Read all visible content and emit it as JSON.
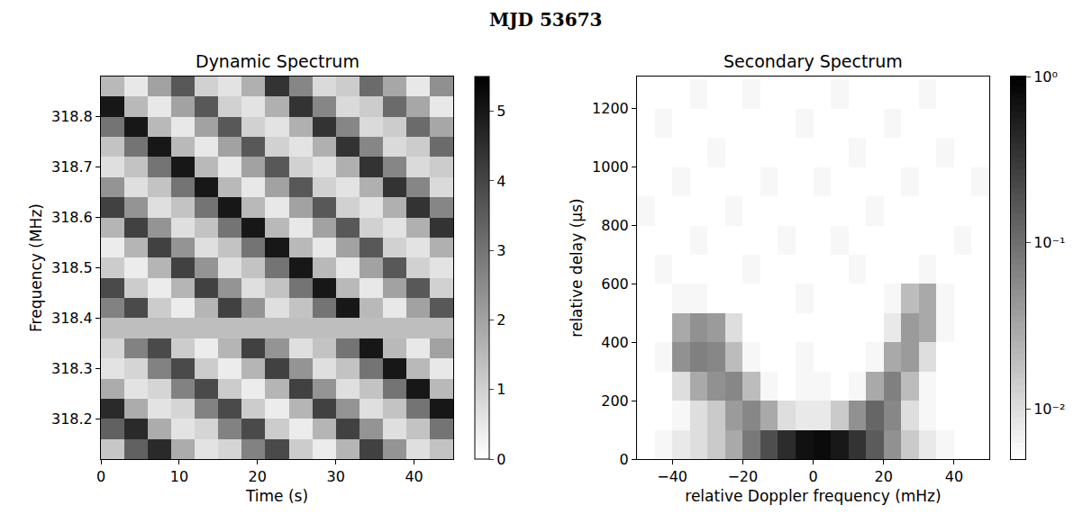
{
  "title": "MJD 53673",
  "chart_data": [
    {
      "type": "heatmap",
      "title": "Dynamic Spectrum",
      "xlabel": "Time (s)",
      "ylabel": "Frequency (MHz)",
      "xlim": [
        0,
        45
      ],
      "xticks": [
        0,
        10,
        20,
        30,
        40
      ],
      "ylim": [
        318.12,
        318.88
      ],
      "yticks": [
        318.2,
        318.3,
        318.4,
        318.5,
        318.6,
        318.7,
        318.8
      ],
      "x": [
        1.5,
        4.5,
        7.5,
        10.5,
        13.5,
        16.5,
        19.5,
        22.5,
        25.5,
        28.5,
        31.5,
        34.5,
        37.5,
        40.5,
        43.5
      ],
      "y": [
        318.14,
        318.18,
        318.22,
        318.26,
        318.3,
        318.34,
        318.38,
        318.42,
        318.46,
        318.5,
        318.54,
        318.58,
        318.62,
        318.66,
        318.7,
        318.74,
        318.78,
        318.82,
        318.86
      ],
      "z": [
        [
          1.2,
          3.4,
          4.6,
          1.8,
          0.6,
          0.9,
          2.7,
          3.9,
          1.1,
          0.4,
          1.6,
          4.1,
          2.3,
          0.7,
          1.3
        ],
        [
          3.4,
          4.6,
          1.8,
          0.6,
          0.9,
          2.7,
          3.9,
          1.1,
          0.4,
          1.6,
          4.1,
          2.3,
          0.7,
          1.3,
          3.0
        ],
        [
          4.6,
          1.8,
          0.6,
          0.9,
          2.7,
          3.9,
          1.1,
          0.4,
          1.6,
          4.1,
          2.3,
          0.7,
          1.3,
          3.0,
          5.0
        ],
        [
          1.8,
          0.6,
          0.9,
          2.7,
          3.9,
          1.1,
          0.4,
          1.6,
          4.1,
          2.3,
          0.7,
          1.3,
          3.0,
          5.0,
          1.5
        ],
        [
          0.6,
          0.9,
          2.7,
          3.9,
          1.1,
          0.4,
          1.6,
          4.1,
          2.3,
          0.7,
          1.3,
          3.0,
          5.0,
          1.5,
          0.5
        ],
        [
          0.9,
          2.7,
          3.9,
          1.1,
          0.4,
          1.6,
          4.1,
          2.3,
          0.7,
          1.3,
          3.0,
          5.0,
          1.5,
          0.5,
          2.0
        ],
        [
          1.4,
          1.4,
          1.4,
          1.4,
          1.4,
          1.4,
          1.4,
          1.4,
          1.4,
          1.4,
          1.4,
          1.4,
          1.4,
          1.4,
          1.4
        ],
        [
          2.7,
          3.9,
          1.1,
          0.4,
          1.6,
          4.1,
          2.3,
          0.7,
          1.3,
          3.0,
          5.0,
          1.5,
          0.5,
          2.0,
          3.6
        ],
        [
          3.9,
          1.1,
          0.4,
          1.6,
          4.1,
          2.3,
          0.7,
          1.3,
          3.0,
          5.0,
          1.5,
          0.5,
          2.0,
          3.6,
          1.0
        ],
        [
          1.1,
          0.4,
          1.6,
          4.1,
          2.3,
          0.7,
          1.3,
          3.0,
          5.0,
          1.5,
          0.5,
          2.0,
          3.6,
          1.0,
          0.6
        ],
        [
          0.4,
          1.6,
          4.1,
          2.3,
          0.7,
          1.3,
          3.0,
          5.0,
          1.5,
          0.5,
          2.0,
          3.6,
          1.0,
          0.6,
          1.7
        ],
        [
          1.6,
          4.1,
          2.3,
          0.7,
          1.3,
          3.0,
          5.0,
          1.5,
          0.5,
          2.0,
          3.6,
          1.0,
          0.6,
          1.7,
          4.4
        ],
        [
          4.1,
          2.3,
          0.7,
          1.3,
          3.0,
          5.0,
          1.5,
          0.5,
          2.0,
          3.6,
          1.0,
          0.6,
          1.7,
          4.4,
          2.6
        ],
        [
          2.3,
          0.7,
          1.3,
          3.0,
          5.0,
          1.5,
          0.5,
          2.0,
          3.6,
          1.0,
          0.6,
          1.7,
          4.4,
          2.6,
          0.8
        ],
        [
          0.7,
          1.3,
          3.0,
          5.0,
          1.5,
          0.5,
          2.0,
          3.6,
          1.0,
          0.6,
          1.7,
          4.4,
          2.6,
          0.8,
          1.1
        ],
        [
          1.3,
          3.0,
          5.0,
          1.5,
          0.5,
          2.0,
          3.6,
          1.0,
          0.6,
          1.7,
          4.4,
          2.6,
          0.8,
          1.1,
          3.2
        ],
        [
          3.0,
          5.0,
          1.5,
          0.5,
          2.0,
          3.6,
          1.0,
          0.6,
          1.7,
          4.4,
          2.6,
          0.8,
          1.1,
          3.2,
          1.9
        ],
        [
          5.0,
          1.5,
          0.5,
          2.0,
          3.6,
          1.0,
          0.6,
          1.7,
          4.4,
          2.6,
          0.8,
          1.1,
          3.2,
          1.9,
          0.5
        ],
        [
          1.5,
          0.5,
          2.0,
          3.6,
          1.0,
          0.6,
          1.7,
          4.4,
          2.6,
          0.8,
          1.1,
          3.2,
          1.9,
          0.5,
          2.4
        ]
      ],
      "colorbar": {
        "range": [
          0,
          5.5
        ],
        "ticks": [
          0,
          1,
          2,
          3,
          4,
          5
        ]
      }
    },
    {
      "type": "heatmap",
      "title": "Secondary Spectrum",
      "xlabel": "relative Doppler frequency (mHz)",
      "ylabel": "relative delay (μs)",
      "xlim": [
        -50,
        50
      ],
      "xticks": [
        {
          "value": -40,
          "label": "−40"
        },
        {
          "value": -20,
          "label": "−20"
        },
        0,
        20,
        40
      ],
      "ylim": [
        0,
        1310
      ],
      "yticks": [
        0,
        200,
        400,
        600,
        800,
        1000,
        1200
      ],
      "x": [
        -47.5,
        -42.5,
        -37.5,
        -32.5,
        -27.5,
        -22.5,
        -17.5,
        -12.5,
        -7.5,
        -2.5,
        2.5,
        7.5,
        12.5,
        17.5,
        22.5,
        27.5,
        32.5,
        37.5,
        42.5,
        47.5
      ],
      "y": [
        50,
        150,
        250,
        350,
        450,
        550,
        650,
        750,
        850,
        950,
        1050,
        1150,
        1250
      ],
      "z": [
        [
          0.005,
          0.006,
          0.008,
          0.01,
          0.015,
          0.03,
          0.08,
          0.2,
          0.4,
          0.7,
          0.8,
          0.6,
          0.35,
          0.15,
          0.05,
          0.015,
          0.008,
          0.006,
          0.005,
          0.005
        ],
        [
          0.005,
          0.005,
          0.006,
          0.01,
          0.015,
          0.04,
          0.06,
          0.03,
          0.01,
          0.008,
          0.008,
          0.015,
          0.05,
          0.12,
          0.06,
          0.01,
          0.006,
          0.005,
          0.005,
          0.005
        ],
        [
          0.005,
          0.005,
          0.01,
          0.03,
          0.05,
          0.06,
          0.02,
          0.006,
          0.005,
          0.006,
          0.006,
          0.005,
          0.006,
          0.03,
          0.07,
          0.02,
          0.006,
          0.005,
          0.005,
          0.005
        ],
        [
          0.005,
          0.006,
          0.05,
          0.07,
          0.06,
          0.02,
          0.006,
          0.005,
          0.005,
          0.006,
          0.005,
          0.005,
          0.005,
          0.006,
          0.03,
          0.04,
          0.01,
          0.005,
          0.005,
          0.005
        ],
        [
          0.005,
          0.005,
          0.03,
          0.05,
          0.04,
          0.01,
          0.005,
          0.005,
          0.005,
          0.005,
          0.005,
          0.005,
          0.005,
          0.005,
          0.008,
          0.04,
          0.03,
          0.006,
          0.005,
          0.005
        ],
        [
          0.005,
          0.005,
          0.006,
          0.006,
          0.005,
          0.005,
          0.005,
          0.005,
          0.005,
          0.006,
          0.005,
          0.005,
          0.005,
          0.005,
          0.006,
          0.02,
          0.03,
          0.006,
          0.005,
          0.005
        ],
        [
          0.005,
          0.006,
          0.005,
          0.005,
          0.005,
          0.005,
          0.006,
          0.005,
          0.005,
          0.005,
          0.005,
          0.005,
          0.006,
          0.005,
          0.005,
          0.005,
          0.006,
          0.005,
          0.005,
          0.005
        ],
        [
          0.005,
          0.005,
          0.005,
          0.006,
          0.005,
          0.005,
          0.005,
          0.005,
          0.006,
          0.005,
          0.005,
          0.006,
          0.005,
          0.005,
          0.005,
          0.005,
          0.005,
          0.005,
          0.006,
          0.005
        ],
        [
          0.006,
          0.005,
          0.005,
          0.005,
          0.005,
          0.006,
          0.005,
          0.005,
          0.005,
          0.005,
          0.005,
          0.005,
          0.005,
          0.006,
          0.005,
          0.005,
          0.005,
          0.005,
          0.005,
          0.005
        ],
        [
          0.005,
          0.005,
          0.006,
          0.005,
          0.005,
          0.005,
          0.005,
          0.006,
          0.005,
          0.005,
          0.006,
          0.005,
          0.005,
          0.005,
          0.005,
          0.006,
          0.005,
          0.005,
          0.005,
          0.006
        ],
        [
          0.005,
          0.005,
          0.005,
          0.005,
          0.006,
          0.005,
          0.005,
          0.005,
          0.005,
          0.005,
          0.005,
          0.005,
          0.006,
          0.005,
          0.005,
          0.005,
          0.005,
          0.006,
          0.005,
          0.005
        ],
        [
          0.005,
          0.006,
          0.005,
          0.005,
          0.005,
          0.005,
          0.005,
          0.005,
          0.005,
          0.006,
          0.005,
          0.005,
          0.005,
          0.005,
          0.006,
          0.005,
          0.005,
          0.005,
          0.005,
          0.005
        ],
        [
          0.005,
          0.005,
          0.005,
          0.006,
          0.005,
          0.005,
          0.006,
          0.005,
          0.005,
          0.005,
          0.005,
          0.006,
          0.005,
          0.005,
          0.005,
          0.005,
          0.006,
          0.005,
          0.005,
          0.005
        ]
      ],
      "colorbar": {
        "range": [
          0.005,
          1
        ],
        "log": true,
        "ticks": [
          {
            "value": 0.01,
            "label": "10⁻²"
          },
          {
            "value": 0.1,
            "label": "10⁻¹"
          },
          {
            "value": 1,
            "label": "10⁰"
          }
        ]
      }
    }
  ]
}
